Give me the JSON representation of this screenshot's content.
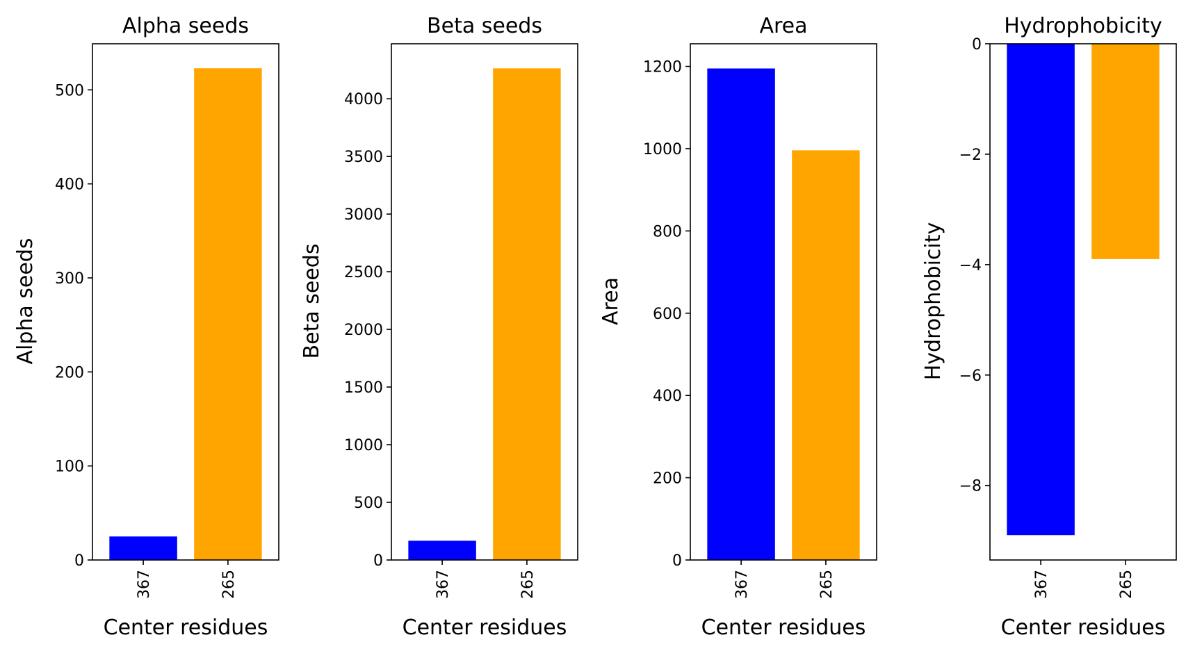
{
  "chart_data": [
    {
      "type": "bar",
      "title": "Alpha seeds",
      "xlabel": "Center residues",
      "ylabel": "Alpha seeds",
      "categories": [
        "367",
        "265"
      ],
      "values": [
        25,
        523
      ],
      "colors": [
        "#0000ff",
        "#ffa500"
      ],
      "ylim": [
        0,
        549
      ],
      "yticks": [
        0,
        100,
        200,
        300,
        400,
        500
      ],
      "ytick_labels": [
        "0",
        "100",
        "200",
        "300",
        "400",
        "500"
      ],
      "grid": false
    },
    {
      "type": "bar",
      "title": "Beta seeds",
      "xlabel": "Center residues",
      "ylabel": "Beta seeds",
      "categories": [
        "367",
        "265"
      ],
      "values": [
        167,
        4264
      ],
      "colors": [
        "#0000ff",
        "#ffa500"
      ],
      "ylim": [
        0,
        4477
      ],
      "yticks": [
        0,
        500,
        1000,
        1500,
        2000,
        2500,
        3000,
        3500,
        4000
      ],
      "ytick_labels": [
        "0",
        "500",
        "1000",
        "1500",
        "2000",
        "2500",
        "3000",
        "3500",
        "4000"
      ],
      "grid": false
    },
    {
      "type": "bar",
      "title": "Area",
      "xlabel": "Center residues",
      "ylabel": "Area",
      "categories": [
        "367",
        "265"
      ],
      "values": [
        1195,
        996
      ],
      "colors": [
        "#0000ff",
        "#ffa500"
      ],
      "ylim": [
        0,
        1255
      ],
      "yticks": [
        0,
        200,
        400,
        600,
        800,
        1000,
        1200
      ],
      "ytick_labels": [
        "0",
        "200",
        "400",
        "600",
        "800",
        "1000",
        "1200"
      ],
      "grid": false
    },
    {
      "type": "bar",
      "title": "Hydrophobicity",
      "xlabel": "Center residues",
      "ylabel": "Hydrophobicity",
      "categories": [
        "367",
        "265"
      ],
      "values": [
        -8.9,
        -3.9
      ],
      "colors": [
        "#0000ff",
        "#ffa500"
      ],
      "ylim": [
        -9.35,
        0
      ],
      "yticks": [
        0,
        -2,
        -4,
        -6,
        -8
      ],
      "ytick_labels": [
        "0",
        "−2",
        "−4",
        "−6",
        "−8"
      ],
      "grid": false
    }
  ]
}
